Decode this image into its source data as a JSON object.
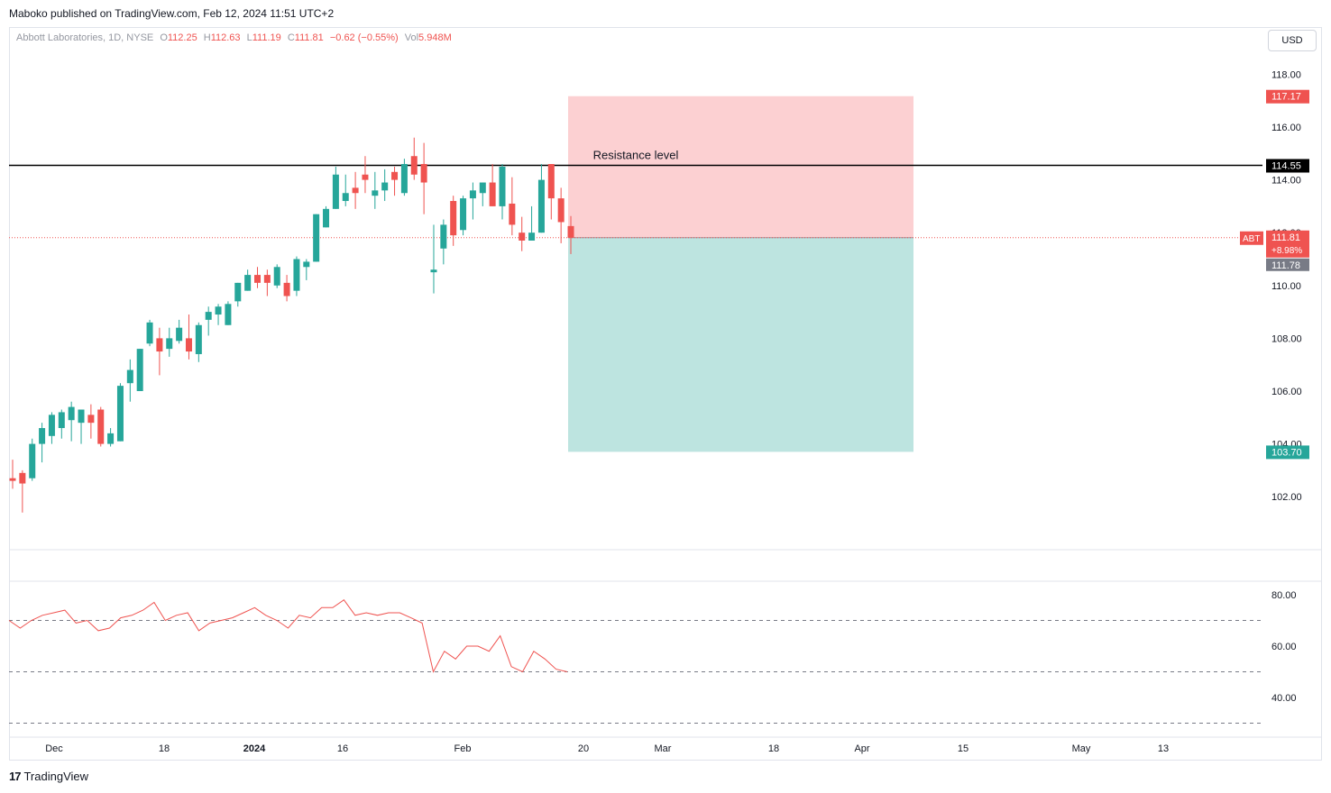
{
  "header": {
    "published": "Maboko published on TradingView.com, Feb 12, 2024 11:51 UTC+2"
  },
  "legend": {
    "symbol": "Abbott Laboratories, 1D, NYSE",
    "o_label": "O",
    "o_value": "112.25",
    "h_label": "H",
    "h_value": "112.63",
    "l_label": "L",
    "l_value": "111.19",
    "c_label": "C",
    "c_value": "111.81",
    "change": "−0.62 (−0.55%)",
    "vol_label": "Vol",
    "vol_value": "5.948M"
  },
  "currency_button": "USD",
  "footer": {
    "logo": "17",
    "brand": "TradingView"
  },
  "colors": {
    "up": "#26a69a",
    "down": "#ef5350",
    "risk_zone": "#fcd0d2",
    "reward_zone": "#bde4e0",
    "rsi_line": "#ef5350",
    "resistance": "#000000"
  },
  "chart_data": {
    "type": "candlestick",
    "price_axis": {
      "ticks": [
        118,
        116,
        114,
        112,
        110,
        108,
        106,
        104,
        102
      ],
      "tick_labels": [
        "118.00",
        "116.00",
        "114.00",
        "112.00",
        "110.00",
        "108.00",
        "106.00",
        "104.00",
        "102.00"
      ]
    },
    "time_axis": {
      "labels": [
        "Dec",
        "18",
        "2024",
        "16",
        "Feb",
        "20",
        "Mar",
        "18",
        "Apr",
        "15",
        "May",
        "13"
      ]
    },
    "candles": [
      {
        "o": 102.7,
        "h": 103.4,
        "l": 102.3,
        "c": 102.6
      },
      {
        "o": 102.9,
        "h": 103.0,
        "l": 101.4,
        "c": 102.5
      },
      {
        "o": 102.7,
        "h": 104.2,
        "l": 102.6,
        "c": 104.0
      },
      {
        "o": 104.0,
        "h": 104.8,
        "l": 103.3,
        "c": 104.6
      },
      {
        "o": 104.3,
        "h": 105.2,
        "l": 104.0,
        "c": 105.1
      },
      {
        "o": 104.6,
        "h": 105.3,
        "l": 104.2,
        "c": 105.2
      },
      {
        "o": 104.9,
        "h": 105.6,
        "l": 104.1,
        "c": 105.4
      },
      {
        "o": 104.8,
        "h": 105.3,
        "l": 104.0,
        "c": 105.3
      },
      {
        "o": 105.1,
        "h": 105.5,
        "l": 104.2,
        "c": 104.8
      },
      {
        "o": 105.3,
        "h": 105.4,
        "l": 103.9,
        "c": 104.0
      },
      {
        "o": 104.0,
        "h": 104.6,
        "l": 103.9,
        "c": 104.4
      },
      {
        "o": 104.1,
        "h": 106.3,
        "l": 104.1,
        "c": 106.2
      },
      {
        "o": 106.3,
        "h": 107.2,
        "l": 105.6,
        "c": 106.8
      },
      {
        "o": 106.0,
        "h": 107.6,
        "l": 106.0,
        "c": 107.6
      },
      {
        "o": 107.8,
        "h": 108.7,
        "l": 107.7,
        "c": 108.6
      },
      {
        "o": 108.0,
        "h": 108.4,
        "l": 106.6,
        "c": 107.5
      },
      {
        "o": 107.6,
        "h": 108.4,
        "l": 107.3,
        "c": 108.0
      },
      {
        "o": 107.9,
        "h": 108.7,
        "l": 107.8,
        "c": 108.4
      },
      {
        "o": 108.0,
        "h": 108.9,
        "l": 107.2,
        "c": 107.5
      },
      {
        "o": 107.4,
        "h": 108.6,
        "l": 107.1,
        "c": 108.5
      },
      {
        "o": 108.7,
        "h": 109.2,
        "l": 108.1,
        "c": 109.0
      },
      {
        "o": 108.9,
        "h": 109.3,
        "l": 108.5,
        "c": 109.2
      },
      {
        "o": 108.5,
        "h": 109.4,
        "l": 108.5,
        "c": 109.3
      },
      {
        "o": 109.4,
        "h": 110.1,
        "l": 109.2,
        "c": 110.1
      },
      {
        "o": 109.8,
        "h": 110.6,
        "l": 109.8,
        "c": 110.4
      },
      {
        "o": 110.4,
        "h": 110.7,
        "l": 109.9,
        "c": 110.1
      },
      {
        "o": 110.4,
        "h": 110.6,
        "l": 109.6,
        "c": 110.1
      },
      {
        "o": 110.0,
        "h": 110.8,
        "l": 109.9,
        "c": 110.7
      },
      {
        "o": 110.1,
        "h": 110.4,
        "l": 109.4,
        "c": 109.6
      },
      {
        "o": 109.8,
        "h": 111.1,
        "l": 109.6,
        "c": 111.0
      },
      {
        "o": 110.7,
        "h": 111.0,
        "l": 110.2,
        "c": 110.9
      },
      {
        "o": 110.9,
        "h": 112.7,
        "l": 110.9,
        "c": 112.7
      },
      {
        "o": 112.2,
        "h": 113.0,
        "l": 112.2,
        "c": 112.9
      },
      {
        "o": 112.9,
        "h": 114.5,
        "l": 112.9,
        "c": 114.2
      },
      {
        "o": 113.2,
        "h": 114.2,
        "l": 113.0,
        "c": 113.5
      },
      {
        "o": 113.7,
        "h": 114.3,
        "l": 112.9,
        "c": 113.5
      },
      {
        "o": 114.2,
        "h": 114.9,
        "l": 113.5,
        "c": 114.0
      },
      {
        "o": 113.4,
        "h": 114.3,
        "l": 112.9,
        "c": 113.6
      },
      {
        "o": 113.6,
        "h": 114.4,
        "l": 113.2,
        "c": 113.9
      },
      {
        "o": 114.3,
        "h": 114.5,
        "l": 113.4,
        "c": 114.0
      },
      {
        "o": 113.5,
        "h": 114.8,
        "l": 113.4,
        "c": 114.6
      },
      {
        "o": 114.9,
        "h": 115.6,
        "l": 114.0,
        "c": 114.2
      },
      {
        "o": 114.6,
        "h": 115.4,
        "l": 112.7,
        "c": 113.9
      },
      {
        "o": 110.5,
        "h": 112.3,
        "l": 109.7,
        "c": 110.6
      },
      {
        "o": 111.4,
        "h": 112.5,
        "l": 110.8,
        "c": 112.3
      },
      {
        "o": 113.2,
        "h": 113.4,
        "l": 111.5,
        "c": 111.9
      },
      {
        "o": 112.1,
        "h": 113.4,
        "l": 111.9,
        "c": 113.3
      },
      {
        "o": 113.3,
        "h": 113.9,
        "l": 112.5,
        "c": 113.6
      },
      {
        "o": 113.5,
        "h": 113.9,
        "l": 113.0,
        "c": 113.9
      },
      {
        "o": 113.9,
        "h": 114.6,
        "l": 113.0,
        "c": 113.0
      },
      {
        "o": 113.0,
        "h": 114.6,
        "l": 112.5,
        "c": 114.5
      },
      {
        "o": 113.1,
        "h": 114.1,
        "l": 111.9,
        "c": 112.3
      },
      {
        "o": 112.0,
        "h": 112.6,
        "l": 111.3,
        "c": 111.7
      },
      {
        "o": 111.7,
        "h": 113.0,
        "l": 111.7,
        "c": 112.0
      },
      {
        "o": 112.0,
        "h": 114.6,
        "l": 112.0,
        "c": 114.0
      },
      {
        "o": 114.6,
        "h": 114.6,
        "l": 112.5,
        "c": 113.3
      },
      {
        "o": 113.3,
        "h": 113.7,
        "l": 111.6,
        "c": 112.4
      },
      {
        "o": 112.25,
        "h": 112.63,
        "l": 111.19,
        "c": 111.81
      }
    ],
    "resistance": {
      "price": 114.55,
      "label": "Resistance level"
    },
    "position": {
      "entry": 111.81,
      "stop": 117.17,
      "target": 103.7
    },
    "price_labels": {
      "stop": "117.17",
      "resistance": "114.55",
      "target": "103.70",
      "symbol": "ABT",
      "last": "111.81",
      "last_change": "+8.98%",
      "countdown_price": "111.78"
    },
    "rsi": {
      "ticks": [
        80,
        60,
        40
      ],
      "tick_labels": [
        "80.00",
        "60.00",
        "40.00"
      ],
      "bands": [
        70,
        50,
        30
      ],
      "values": [
        70,
        67,
        70,
        72,
        73,
        74,
        69,
        70,
        66,
        67,
        71,
        72,
        74,
        77,
        70,
        72,
        73,
        66,
        69,
        70,
        71,
        73,
        75,
        72,
        70,
        67,
        72,
        71,
        75,
        75,
        78,
        72,
        73,
        72,
        73,
        73,
        71,
        69,
        50,
        58,
        55,
        60,
        60,
        58,
        64,
        52,
        50,
        58,
        55,
        51,
        50
      ]
    }
  }
}
